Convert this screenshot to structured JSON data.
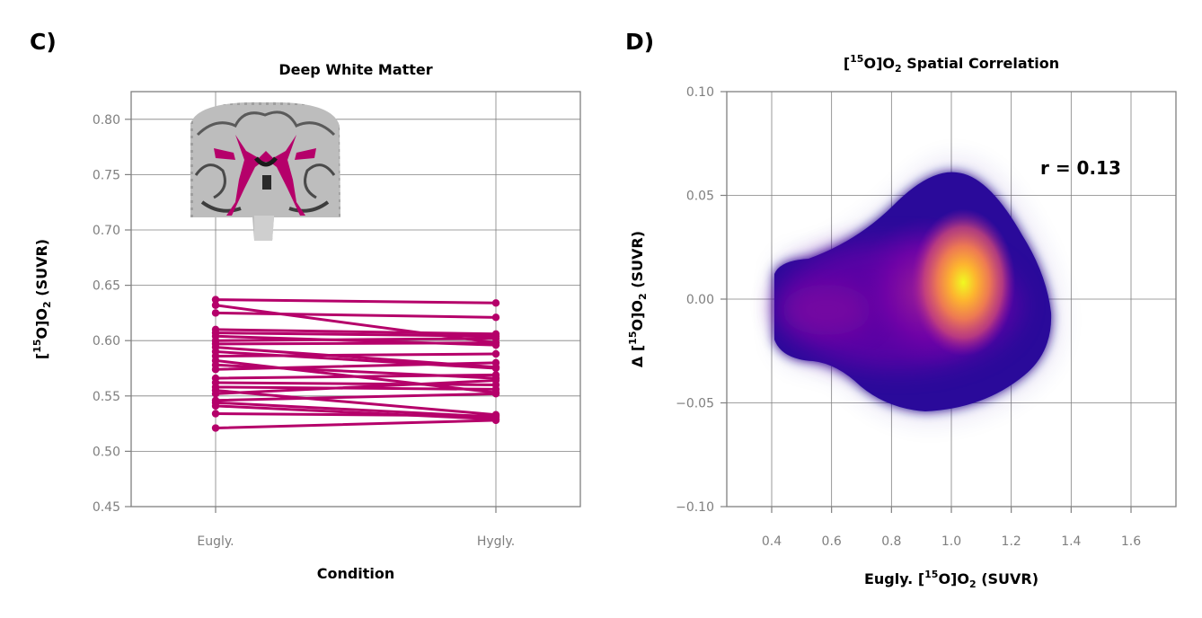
{
  "panels": {
    "c": {
      "label": "C)"
    },
    "d": {
      "label": "D)"
    }
  },
  "colors": {
    "paired": "#b5006a",
    "grid": "#808080",
    "tick_text": "#7f7f7f"
  },
  "icons": {
    "brain_inset": "coronal-brain-slice-icon"
  },
  "chart_data": [
    {
      "type": "line",
      "title": "Deep White Matter",
      "xlabel": "Condition",
      "ylabel": "[15O]O2 (SUVR)",
      "categories": [
        "Eugly.",
        "Hygly."
      ],
      "ylim": [
        0.45,
        0.825
      ],
      "yticks": [
        "0.45",
        "0.50",
        "0.55",
        "0.60",
        "0.65",
        "0.70",
        "0.75",
        "0.80"
      ],
      "grid": true,
      "series": [
        {
          "values": [
            0.637,
            0.634
          ]
        },
        {
          "values": [
            0.632,
            0.598
          ]
        },
        {
          "values": [
            0.625,
            0.621
          ]
        },
        {
          "values": [
            0.61,
            0.606
          ]
        },
        {
          "values": [
            0.607,
            0.604
          ]
        },
        {
          "values": [
            0.604,
            0.596
          ]
        },
        {
          "values": [
            0.6,
            0.602
          ]
        },
        {
          "values": [
            0.597,
            0.598
          ]
        },
        {
          "values": [
            0.594,
            0.576
          ]
        },
        {
          "values": [
            0.59,
            0.575
          ]
        },
        {
          "values": [
            0.586,
            0.588
          ]
        },
        {
          "values": [
            0.582,
            0.553
          ]
        },
        {
          "values": [
            0.578,
            0.566
          ]
        },
        {
          "values": [
            0.574,
            0.58
          ]
        },
        {
          "values": [
            0.566,
            0.569
          ]
        },
        {
          "values": [
            0.562,
            0.56
          ]
        },
        {
          "values": [
            0.558,
            0.556
          ]
        },
        {
          "values": [
            0.555,
            0.533
          ]
        },
        {
          "values": [
            0.552,
            0.564
          ]
        },
        {
          "values": [
            0.546,
            0.552
          ]
        },
        {
          "values": [
            0.544,
            0.531
          ]
        },
        {
          "values": [
            0.541,
            0.529
          ]
        },
        {
          "values": [
            0.534,
            0.532
          ]
        },
        {
          "values": [
            0.521,
            0.528
          ]
        }
      ]
    },
    {
      "type": "scatter",
      "title": "[15O]O2 Spatial Correlation",
      "xlabel": "Eugly. [15O]O2 (SUVR)",
      "ylabel": "Δ [15O]O2 (SUVR)",
      "xlim": [
        0.25,
        1.75
      ],
      "ylim": [
        -0.1,
        0.1
      ],
      "xticks": [
        "0.4",
        "0.6",
        "0.8",
        "1.0",
        "1.2",
        "1.4",
        "1.6"
      ],
      "yticks": [
        "−0.10",
        "−0.05",
        "0.00",
        "0.05",
        "0.10"
      ],
      "grid": true,
      "colormap": "plasma",
      "annotation": "r = 0.13",
      "density_core": {
        "x": 1.04,
        "y": 0.008
      }
    }
  ]
}
